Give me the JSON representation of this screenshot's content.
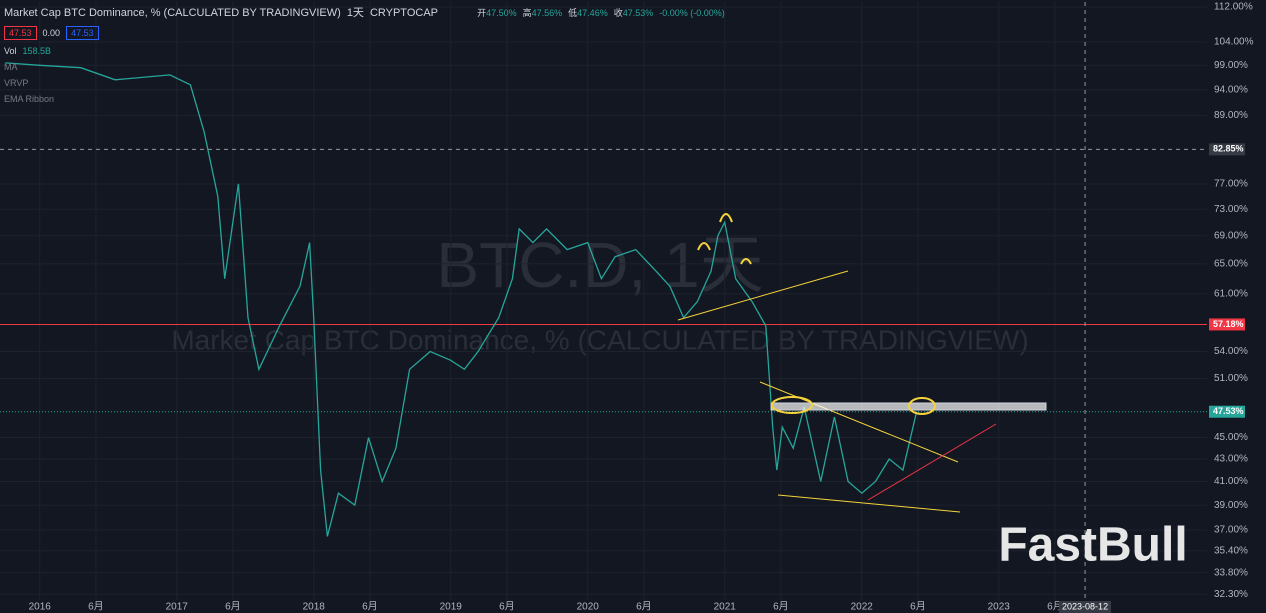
{
  "chart_data": {
    "type": "line",
    "title": "Market Cap BTC Dominance, % (CALCULATED BY TRADINGVIEW)",
    "interval": "1天",
    "exchange": "CRYPTOCAP",
    "ohlc": [
      {
        "label": "开",
        "value": "47.50%"
      },
      {
        "label": "高",
        "value": "47.56%"
      },
      {
        "label": "低",
        "value": "47.46%"
      },
      {
        "label": "收",
        "value": "47.53%"
      },
      {
        "label": "",
        "value": "-0.00% (-0.00%)"
      }
    ],
    "quote_boxes": [
      "47.53",
      "0.00",
      "47.53"
    ],
    "volume_label": "Vol",
    "volume_value": "158.5B",
    "indicators": [
      "MA",
      "VRVP",
      "EMA Ribbon"
    ],
    "watermark": [
      "BTC.D, 1天",
      "Market Cap BTC Dominance, % (CALCULATED BY TRADINGVIEW)"
    ],
    "brand": "FastBull",
    "log_scale": true,
    "grid": true,
    "xlim": [
      2015.71,
      2024.52
    ],
    "ylim": [
      31.9,
      113.2
    ],
    "xticks": [
      {
        "value": 2016,
        "label": "2016"
      },
      {
        "value": 2016.41,
        "label": "6月"
      },
      {
        "value": 2017,
        "label": "2017"
      },
      {
        "value": 2017.41,
        "label": "6月"
      },
      {
        "value": 2018,
        "label": "2018"
      },
      {
        "value": 2018.41,
        "label": "6月"
      },
      {
        "value": 2019,
        "label": "2019"
      },
      {
        "value": 2019.41,
        "label": "6月"
      },
      {
        "value": 2020,
        "label": "2020"
      },
      {
        "value": 2020.41,
        "label": "6月"
      },
      {
        "value": 2021,
        "label": "2021"
      },
      {
        "value": 2021.41,
        "label": "6月"
      },
      {
        "value": 2022,
        "label": "2022"
      },
      {
        "value": 2022.41,
        "label": "6月"
      },
      {
        "value": 2023,
        "label": "2023"
      },
      {
        "value": 2023.41,
        "label": "6月"
      }
    ],
    "yticks": [
      {
        "value": 112,
        "label": "112.00%"
      },
      {
        "value": 104,
        "label": "104.00%"
      },
      {
        "value": 99,
        "label": "99.00%"
      },
      {
        "value": 94,
        "label": "94.00%"
      },
      {
        "value": 89,
        "label": "89.00%"
      },
      {
        "value": 77,
        "label": "77.00%"
      },
      {
        "value": 73,
        "label": "73.00%"
      },
      {
        "value": 69,
        "label": "69.00%"
      },
      {
        "value": 65,
        "label": "65.00%"
      },
      {
        "value": 61,
        "label": "61.00%"
      },
      {
        "value": 54,
        "label": "54.00%"
      },
      {
        "value": 51,
        "label": "51.00%"
      },
      {
        "value": 45,
        "label": "45.00%"
      },
      {
        "value": 43,
        "label": "43.00%"
      },
      {
        "value": 41,
        "label": "41.00%"
      },
      {
        "value": 39,
        "label": "39.00%"
      },
      {
        "value": 37,
        "label": "37.00%"
      },
      {
        "value": 35.4,
        "label": "35.40%"
      },
      {
        "value": 33.8,
        "label": "33.80%"
      },
      {
        "value": 32.3,
        "label": "32.30%"
      }
    ],
    "price_lines": [
      {
        "value": 57.18,
        "label": "57.18%",
        "color": "#f23645"
      },
      {
        "value": 47.53,
        "label": "47.53%",
        "color": "#26a69a"
      }
    ],
    "crosshair": {
      "x": {
        "value": 2023.63,
        "label": "2023-08-12"
      },
      "y": {
        "value": 82.85,
        "label": "82.85%"
      }
    },
    "series": [
      {
        "name": "BTC.D",
        "color": "#26a69a",
        "x": [
          2015.75,
          2016.0,
          2016.3,
          2016.55,
          2016.95,
          2017.1,
          2017.2,
          2017.3,
          2017.35,
          2017.45,
          2017.52,
          2017.6,
          2017.75,
          2017.9,
          2017.97,
          2018.0,
          2018.05,
          2018.1,
          2018.18,
          2018.3,
          2018.4,
          2018.5,
          2018.6,
          2018.7,
          2018.85,
          2019.0,
          2019.1,
          2019.2,
          2019.35,
          2019.45,
          2019.5,
          2019.6,
          2019.7,
          2019.85,
          2020.0,
          2020.1,
          2020.2,
          2020.35,
          2020.5,
          2020.6,
          2020.7,
          2020.8,
          2020.9,
          2020.95,
          2021.0,
          2021.08,
          2021.2,
          2021.3,
          2021.35,
          2021.38,
          2021.42,
          2021.5,
          2021.58,
          2021.7,
          2021.8,
          2021.9,
          2022.0,
          2022.1,
          2022.2,
          2022.3,
          2022.4
        ],
        "values": [
          99.5,
          99,
          98.5,
          96,
          97,
          95,
          86,
          75,
          63,
          77,
          58,
          52,
          57,
          62,
          68,
          58,
          42,
          36.5,
          40,
          39,
          45,
          41,
          44,
          52,
          54,
          53,
          52,
          54,
          58,
          63,
          70,
          68,
          70,
          67,
          68,
          63,
          66,
          67,
          64,
          62,
          58,
          60,
          64,
          69,
          71,
          63,
          60,
          57,
          46,
          42,
          46,
          44,
          48,
          41,
          47,
          41,
          40,
          41,
          43,
          42,
          47.53
        ]
      }
    ]
  }
}
